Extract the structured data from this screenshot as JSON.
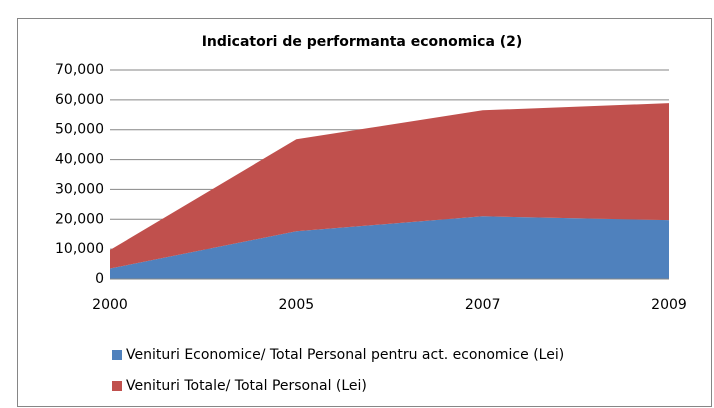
{
  "chart_data": {
    "type": "stacked_area",
    "title": "Indicatori de performanta economica (2)",
    "categories": [
      "2000",
      "2005",
      "2007",
      "2009"
    ],
    "series": [
      {
        "name": "Venituri Economice/ Total Personal pentru act. economice (Lei)",
        "color": "#4f81bd",
        "values": [
          3500,
          16000,
          21000,
          19700
        ]
      },
      {
        "name": "Venituri Totale/ Total Personal (Lei)",
        "color": "#c0504d",
        "values": [
          6200,
          30800,
          35500,
          39200
        ]
      }
    ],
    "ylim": [
      0,
      70000
    ],
    "yticks": [
      0,
      {
        "value": 10000,
        "label": "10,000"
      },
      {
        "value": 20000,
        "label": "20,000"
      },
      {
        "value": 30000,
        "label": "30,000"
      },
      {
        "value": 40000,
        "label": "40,000"
      },
      {
        "value": 50000,
        "label": "50,000"
      },
      {
        "value": 60000,
        "label": "60,000"
      },
      {
        "value": 70000,
        "label": "70,000"
      }
    ],
    "grid": true,
    "legend": "bottom"
  }
}
